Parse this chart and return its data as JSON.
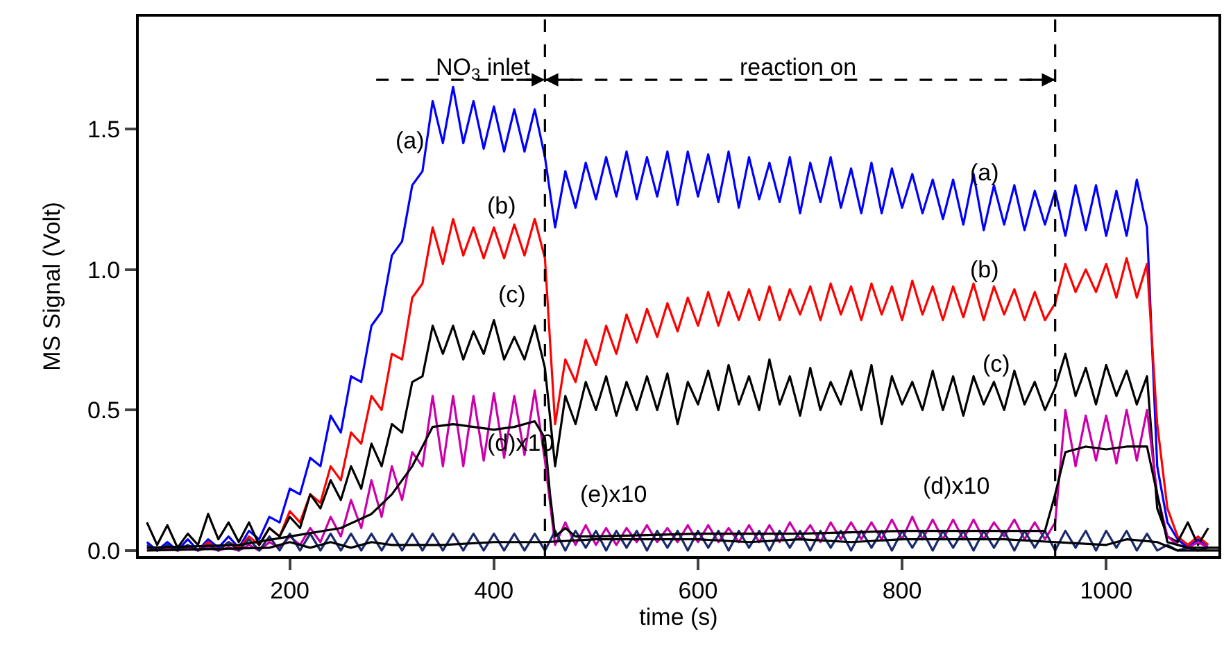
{
  "chart_data": {
    "type": "line",
    "xlabel": "time (s)",
    "ylabel": "MS Signal (Volt)",
    "xlim": [
      52,
      1110
    ],
    "ylim": [
      -0.02,
      1.9
    ],
    "xticks": [
      200,
      400,
      600,
      800,
      1000
    ],
    "yticks": [
      {
        "value": 0,
        "label": "0.0"
      },
      {
        "value": 0.5,
        "label": "0.5"
      },
      {
        "value": 1,
        "label": "1.0"
      },
      {
        "value": 1.5,
        "label": "1.5"
      }
    ],
    "marker": "none",
    "line_style": "solid",
    "x": [
      60,
      70,
      80,
      90,
      100,
      110,
      120,
      130,
      140,
      150,
      160,
      170,
      180,
      190,
      200,
      210,
      220,
      230,
      240,
      250,
      260,
      270,
      280,
      290,
      300,
      310,
      320,
      330,
      340,
      350,
      360,
      370,
      380,
      390,
      400,
      410,
      420,
      430,
      440,
      450,
      460,
      470,
      480,
      490,
      500,
      510,
      520,
      530,
      540,
      550,
      560,
      570,
      580,
      590,
      600,
      610,
      620,
      630,
      640,
      650,
      660,
      670,
      680,
      690,
      700,
      710,
      720,
      730,
      740,
      750,
      760,
      770,
      780,
      790,
      800,
      810,
      820,
      830,
      840,
      850,
      860,
      870,
      880,
      890,
      900,
      910,
      920,
      930,
      940,
      950,
      960,
      970,
      980,
      990,
      1000,
      1010,
      1020,
      1030,
      1040,
      1050,
      1060,
      1070,
      1080,
      1090,
      1100
    ],
    "series": [
      {
        "color": "#0000ff",
        "values": [
          0.03,
          0.0,
          0.03,
          0.0,
          0.04,
          0.0,
          0.04,
          0.01,
          0.05,
          0.01,
          0.07,
          0.04,
          0.12,
          0.1,
          0.22,
          0.2,
          0.33,
          0.3,
          0.48,
          0.42,
          0.62,
          0.6,
          0.8,
          0.85,
          1.05,
          1.1,
          1.3,
          1.35,
          1.6,
          1.45,
          1.65,
          1.45,
          1.6,
          1.43,
          1.58,
          1.42,
          1.57,
          1.42,
          1.57,
          1.4,
          1.15,
          1.35,
          1.22,
          1.38,
          1.25,
          1.4,
          1.26,
          1.42,
          1.25,
          1.4,
          1.26,
          1.42,
          1.23,
          1.42,
          1.26,
          1.41,
          1.24,
          1.42,
          1.22,
          1.4,
          1.25,
          1.38,
          1.24,
          1.4,
          1.2,
          1.38,
          1.24,
          1.4,
          1.22,
          1.36,
          1.2,
          1.38,
          1.2,
          1.36,
          1.22,
          1.34,
          1.2,
          1.32,
          1.18,
          1.32,
          1.16,
          1.34,
          1.14,
          1.3,
          1.16,
          1.3,
          1.14,
          1.28,
          1.16,
          1.28,
          1.12,
          1.3,
          1.14,
          1.3,
          1.12,
          1.28,
          1.12,
          1.32,
          1.15,
          0.3,
          0.1,
          0.04,
          0.01,
          0.04,
          0.01
        ]
      },
      {
        "color": "#ff0000",
        "values": [
          null,
          null,
          null,
          null,
          null,
          0.0,
          0.03,
          0.0,
          0.03,
          0.01,
          0.05,
          0.02,
          0.08,
          0.05,
          0.14,
          0.1,
          0.2,
          0.17,
          0.3,
          0.25,
          0.42,
          0.38,
          0.55,
          0.5,
          0.7,
          0.68,
          0.9,
          0.95,
          1.15,
          1.02,
          1.18,
          1.05,
          1.15,
          1.04,
          1.15,
          1.04,
          1.16,
          1.05,
          1.18,
          1.04,
          0.45,
          0.68,
          0.6,
          0.75,
          0.66,
          0.8,
          0.7,
          0.84,
          0.74,
          0.86,
          0.76,
          0.88,
          0.78,
          0.9,
          0.8,
          0.92,
          0.8,
          0.92,
          0.82,
          0.93,
          0.82,
          0.94,
          0.82,
          0.93,
          0.84,
          0.94,
          0.82,
          0.95,
          0.84,
          0.94,
          0.82,
          0.95,
          0.84,
          0.94,
          0.82,
          0.96,
          0.84,
          0.94,
          0.82,
          0.94,
          0.83,
          0.95,
          0.82,
          0.94,
          0.84,
          0.93,
          0.82,
          0.92,
          0.82,
          0.88,
          1.02,
          0.92,
          1.0,
          0.92,
          1.02,
          0.9,
          1.04,
          0.9,
          1.02,
          0.45,
          0.15,
          0.05,
          0.02,
          0.05,
          0.02
        ]
      },
      {
        "color": "#000000",
        "values": [
          0.1,
          0.02,
          0.09,
          0.01,
          0.06,
          0.02,
          0.13,
          0.04,
          0.1,
          0.03,
          0.1,
          0.02,
          0.08,
          0.05,
          0.12,
          0.08,
          0.2,
          0.15,
          0.25,
          0.18,
          0.3,
          0.22,
          0.38,
          0.3,
          0.45,
          0.42,
          0.6,
          0.62,
          0.8,
          0.7,
          0.8,
          0.68,
          0.78,
          0.7,
          0.82,
          0.68,
          0.76,
          0.68,
          0.8,
          0.65,
          0.3,
          0.55,
          0.45,
          0.6,
          0.5,
          0.62,
          0.48,
          0.6,
          0.5,
          0.62,
          0.5,
          0.63,
          0.45,
          0.6,
          0.52,
          0.64,
          0.5,
          0.66,
          0.52,
          0.62,
          0.5,
          0.68,
          0.52,
          0.62,
          0.48,
          0.65,
          0.5,
          0.6,
          0.52,
          0.64,
          0.5,
          0.66,
          0.45,
          0.62,
          0.52,
          0.6,
          0.5,
          0.64,
          0.5,
          0.62,
          0.48,
          0.62,
          0.52,
          0.6,
          0.5,
          0.64,
          0.52,
          0.6,
          0.5,
          0.58,
          0.7,
          0.55,
          0.65,
          0.52,
          0.66,
          0.55,
          0.64,
          0.52,
          0.62,
          0.15,
          0.05,
          0.03,
          0.1,
          0.02,
          0.08
        ]
      },
      {
        "color": "#cc00aa",
        "values": [
          0.01,
          0.0,
          0.01,
          0.0,
          0.01,
          0.0,
          0.01,
          0.0,
          0.01,
          0.0,
          0.02,
          0.0,
          0.03,
          0.01,
          0.05,
          0.02,
          0.08,
          0.03,
          0.12,
          0.05,
          0.18,
          0.08,
          0.25,
          0.12,
          0.3,
          0.18,
          0.35,
          0.3,
          0.55,
          0.3,
          0.55,
          0.3,
          0.55,
          0.32,
          0.56,
          0.33,
          0.55,
          0.34,
          0.57,
          0.32,
          0.02,
          0.1,
          0.02,
          0.09,
          0.02,
          0.08,
          0.02,
          0.08,
          0.03,
          0.09,
          0.03,
          0.08,
          0.03,
          0.09,
          0.03,
          0.09,
          0.03,
          0.08,
          0.03,
          0.09,
          0.03,
          0.09,
          0.03,
          0.1,
          0.04,
          0.09,
          0.03,
          0.1,
          0.04,
          0.1,
          0.04,
          0.1,
          0.04,
          0.11,
          0.04,
          0.12,
          0.04,
          0.11,
          0.04,
          0.11,
          0.04,
          0.11,
          0.04,
          0.1,
          0.05,
          0.11,
          0.04,
          0.1,
          0.04,
          0.1,
          0.5,
          0.3,
          0.48,
          0.32,
          0.48,
          0.31,
          0.5,
          0.32,
          0.5,
          0.2,
          0.05,
          0.02,
          0.01,
          0.03,
          0.01
        ]
      },
      {
        "color": "#1a2a6c",
        "values": [
          0.02,
          0.0,
          0.02,
          0.0,
          0.02,
          0.0,
          0.02,
          0.0,
          0.03,
          0.0,
          0.04,
          0.0,
          0.05,
          0.0,
          0.06,
          0.0,
          0.06,
          0.0,
          0.06,
          0.0,
          0.06,
          0.0,
          0.06,
          0.0,
          0.06,
          0.0,
          0.06,
          0.0,
          0.06,
          0.0,
          0.06,
          0.0,
          0.06,
          0.0,
          0.06,
          0.0,
          0.06,
          0.0,
          0.06,
          0.0,
          0.07,
          0.0,
          0.07,
          0.01,
          0.07,
          0.0,
          0.07,
          0.01,
          0.07,
          0.0,
          0.07,
          0.01,
          0.07,
          0.0,
          0.07,
          0.01,
          0.07,
          0.0,
          0.07,
          0.01,
          0.07,
          0.0,
          0.07,
          0.01,
          0.07,
          0.0,
          0.07,
          0.01,
          0.07,
          0.0,
          0.07,
          0.01,
          0.07,
          0.0,
          0.07,
          0.01,
          0.07,
          0.0,
          0.07,
          0.01,
          0.07,
          0.0,
          0.07,
          0.01,
          0.07,
          0.0,
          0.07,
          0.01,
          0.07,
          0.0,
          0.07,
          0.01,
          0.07,
          0.0,
          0.07,
          0.01,
          0.07,
          0.0,
          0.06,
          0.0,
          0.02,
          0.0,
          0.01,
          0.0,
          0.01
        ]
      },
      {
        "color": "#000000",
        "x": [
          60,
          150,
          200,
          250,
          280,
          300,
          320,
          340,
          360,
          400,
          420,
          440,
          450,
          455,
          460,
          470,
          480,
          500,
          600,
          700,
          800,
          900,
          940,
          950,
          960,
          980,
          1000,
          1020,
          1040,
          1050,
          1060,
          1080,
          1110
        ],
        "values": [
          0.01,
          0.02,
          0.05,
          0.08,
          0.13,
          0.2,
          0.3,
          0.44,
          0.45,
          0.43,
          0.44,
          0.46,
          0.4,
          0.2,
          0.05,
          0.08,
          0.05,
          0.05,
          0.06,
          0.06,
          0.07,
          0.07,
          0.07,
          0.2,
          0.35,
          0.37,
          0.36,
          0.37,
          0.37,
          0.2,
          0.03,
          0.01,
          0.01
        ]
      },
      {
        "color": "#000000",
        "x": [
          60,
          180,
          200,
          220,
          240,
          260,
          280,
          300,
          350,
          400,
          450,
          500,
          550,
          600,
          650,
          700,
          750,
          800,
          850,
          900,
          950,
          1000,
          1020,
          1050,
          1070,
          1110
        ],
        "values": [
          0.0,
          0.01,
          0.03,
          0.01,
          0.03,
          0.01,
          0.03,
          0.02,
          0.02,
          0.03,
          0.03,
          0.04,
          0.04,
          0.04,
          0.03,
          0.04,
          0.03,
          0.04,
          0.04,
          0.04,
          0.03,
          0.02,
          0.04,
          0.03,
          0.0,
          0.0
        ]
      }
    ],
    "ref_lines": [
      {
        "axis": "x",
        "value": 450,
        "line_style": "dashed",
        "color": "#000000"
      },
      {
        "axis": "x",
        "value": 950,
        "line_style": "dashed",
        "color": "#000000"
      }
    ],
    "annotations": [
      "NO$_{3}$ inlet",
      "reaction on",
      "(a)",
      "(b)",
      "(c)",
      "(d)x10",
      "(e)x10",
      "(a)",
      "(b)",
      "(c)",
      "(d)x10"
    ]
  }
}
